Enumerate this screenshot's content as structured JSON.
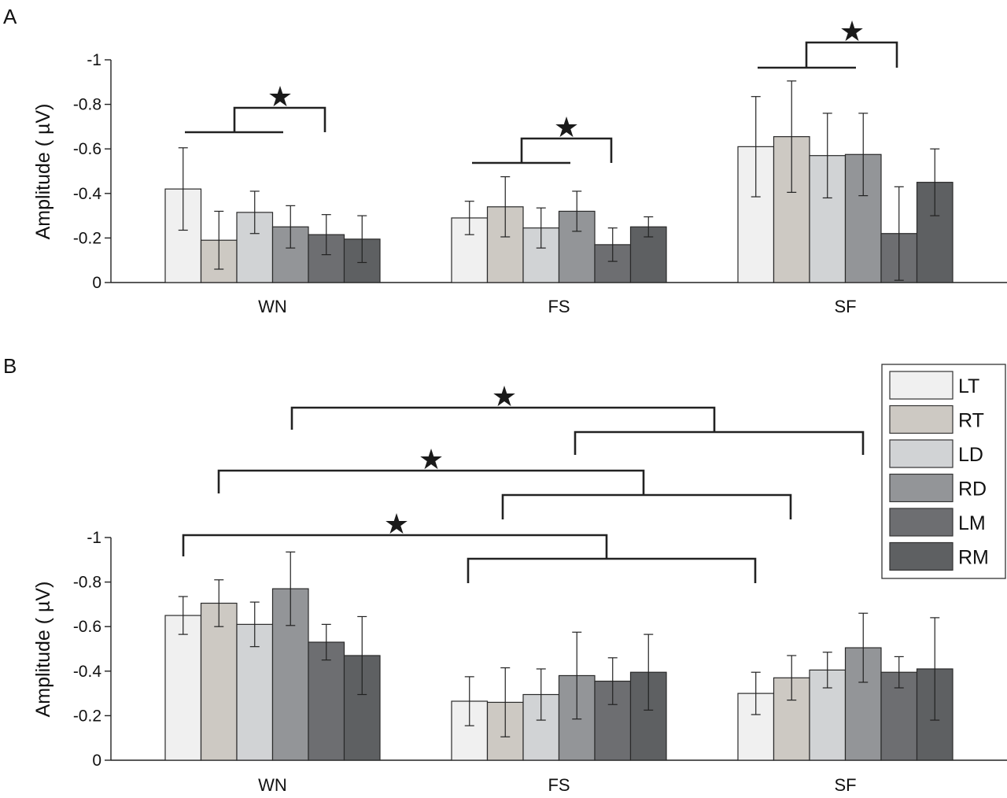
{
  "panels": [
    {
      "label": "A",
      "ylabel": "Amplitude ( µV)"
    },
    {
      "label": "B",
      "ylabel": "Amplitude ( µV)"
    }
  ],
  "legend": [
    {
      "name": "LT",
      "color": "#f0f0f0"
    },
    {
      "name": "RT",
      "color": "#cdc9c3"
    },
    {
      "name": "LD",
      "color": "#d1d3d5"
    },
    {
      "name": "RD",
      "color": "#939598"
    },
    {
      "name": "LM",
      "color": "#6d6e71"
    },
    {
      "name": "RM",
      "color": "#5e6062"
    }
  ],
  "chart_data": [
    {
      "type": "bar",
      "panel": "A",
      "categories": [
        "WN",
        "FS",
        "SF"
      ],
      "ylabel": "Amplitude ( µV)",
      "ylim": [
        0,
        -1
      ],
      "yticks": [
        "0",
        "-0.2",
        "-0.4",
        "-0.6",
        "-0.8",
        "-1"
      ],
      "series": [
        {
          "name": "LT",
          "values": [
            -0.42,
            -0.29,
            -0.61
          ],
          "errors": [
            0.185,
            0.075,
            0.225
          ]
        },
        {
          "name": "RT",
          "values": [
            -0.19,
            -0.34,
            -0.655
          ],
          "errors": [
            0.13,
            0.135,
            0.25
          ]
        },
        {
          "name": "LD",
          "values": [
            -0.315,
            -0.245,
            -0.57
          ],
          "errors": [
            0.095,
            0.09,
            0.19
          ]
        },
        {
          "name": "RD",
          "values": [
            -0.25,
            -0.32,
            -0.575
          ],
          "errors": [
            0.095,
            0.09,
            0.185
          ]
        },
        {
          "name": "LM",
          "values": [
            -0.215,
            -0.17,
            -0.22
          ],
          "errors": [
            0.09,
            0.075,
            0.21
          ]
        },
        {
          "name": "RM",
          "values": [
            -0.195,
            -0.25,
            -0.45
          ],
          "errors": [
            0.105,
            0.045,
            0.15
          ]
        }
      ],
      "significance": [
        "★",
        "★",
        "★"
      ]
    },
    {
      "type": "bar",
      "panel": "B",
      "categories": [
        "WN",
        "FS",
        "SF"
      ],
      "ylabel": "Amplitude ( µV)",
      "ylim": [
        0,
        -1
      ],
      "yticks": [
        "0",
        "-0.2",
        "-0.4",
        "-0.6",
        "-0.8",
        "-1"
      ],
      "series": [
        {
          "name": "LT",
          "values": [
            -0.65,
            -0.265,
            -0.3
          ],
          "errors": [
            0.085,
            0.11,
            0.095
          ]
        },
        {
          "name": "RT",
          "values": [
            -0.705,
            -0.26,
            -0.37
          ],
          "errors": [
            0.105,
            0.155,
            0.1
          ]
        },
        {
          "name": "LD",
          "values": [
            -0.61,
            -0.295,
            -0.405
          ],
          "errors": [
            0.1,
            0.115,
            0.08
          ]
        },
        {
          "name": "RD",
          "values": [
            -0.77,
            -0.38,
            -0.505
          ],
          "errors": [
            0.165,
            0.195,
            0.155
          ]
        },
        {
          "name": "LM",
          "values": [
            -0.53,
            -0.355,
            -0.395
          ],
          "errors": [
            0.08,
            0.105,
            0.07
          ]
        },
        {
          "name": "RM",
          "values": [
            -0.47,
            -0.395,
            -0.41
          ],
          "errors": [
            0.175,
            0.17,
            0.23
          ]
        }
      ],
      "significance": [
        "★",
        "★",
        "★"
      ]
    }
  ]
}
